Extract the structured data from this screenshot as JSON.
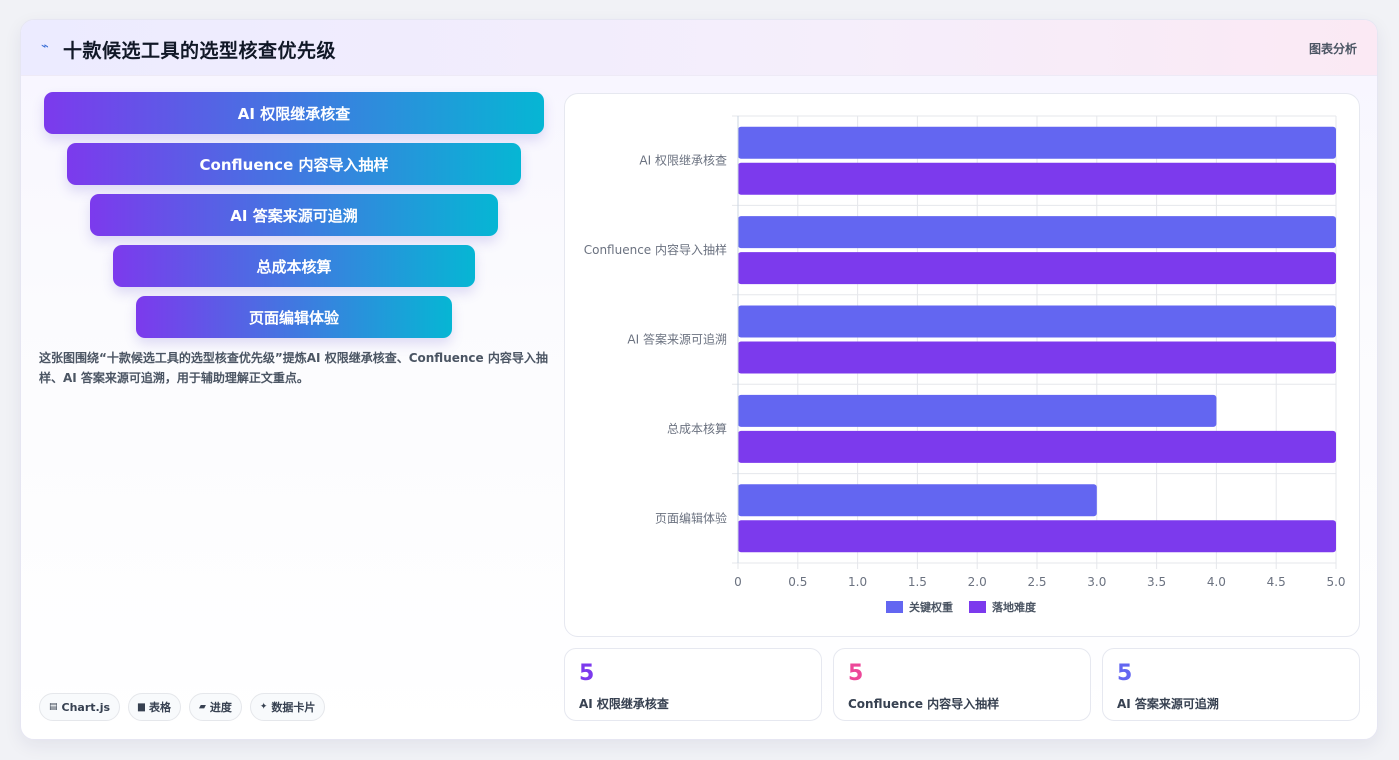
{
  "header": {
    "title": "十款候选工具的选型核查优先级",
    "badge": "图表分析",
    "icon": "trend-icon"
  },
  "funnel": [
    "AI 权限继承核查",
    "Confluence 内容导入抽样",
    "AI 答案来源可追溯",
    "总成本核算",
    "页面编辑体验"
  ],
  "description": "这张图围绕“十款候选工具的选型核查优先级”提炼AI 权限继承核查、Confluence 内容导入抽样、AI 答案来源可追溯，用于辅助理解正文重点。",
  "tags": [
    {
      "icon": "chart-icon",
      "label": "Chart.js"
    },
    {
      "icon": "table-icon",
      "label": "表格"
    },
    {
      "icon": "progress-icon",
      "label": "进度"
    },
    {
      "icon": "sparkle-icon",
      "label": "数据卡片"
    }
  ],
  "stats": [
    {
      "value": "5",
      "label": "AI 权限继承核查",
      "color": "#7c3aed"
    },
    {
      "value": "5",
      "label": "Confluence 内容导入抽样",
      "color": "#ec4899"
    },
    {
      "value": "5",
      "label": "AI 答案来源可追溯",
      "color": "#6366f1"
    }
  ],
  "colors": {
    "funnel_start": "#7c3aed",
    "funnel_end": "#06b6d4"
  },
  "chart_data": {
    "type": "bar",
    "orientation": "horizontal",
    "categories": [
      "AI 权限继承核查",
      "Confluence 内容导入抽样",
      "AI 答案来源可追溯",
      "总成本核算",
      "页面编辑体验"
    ],
    "series": [
      {
        "name": "关键权重",
        "values": [
          5,
          5,
          5,
          4,
          3
        ],
        "color": "#6366f1"
      },
      {
        "name": "落地难度",
        "values": [
          5,
          5,
          5,
          5,
          5
        ],
        "color": "#7c3aed"
      }
    ],
    "xlim": [
      0,
      5
    ],
    "x_ticks": [
      "0",
      "0.5",
      "1.0",
      "1.5",
      "2.0",
      "2.5",
      "3.0",
      "3.5",
      "4.0",
      "4.5",
      "5.0"
    ],
    "grid": true,
    "legend": "bottom"
  }
}
